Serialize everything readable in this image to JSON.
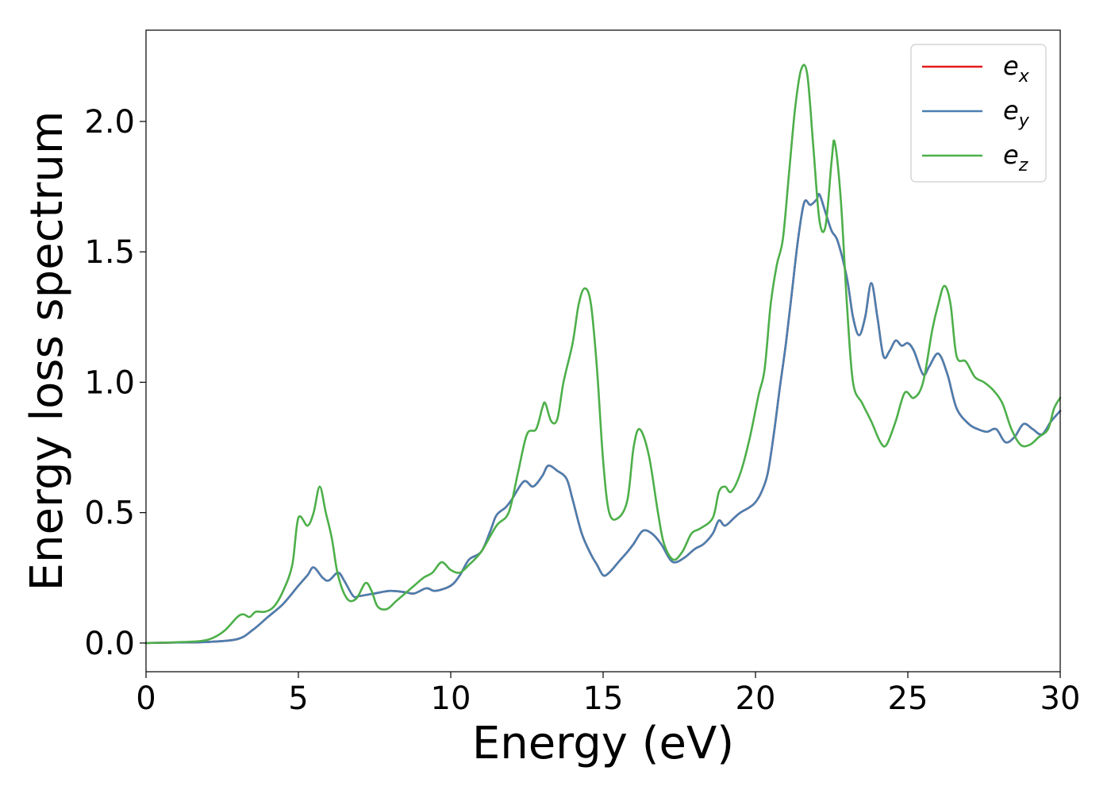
{
  "chart_data": {
    "type": "line",
    "title": "",
    "xlabel": "Energy (eV)",
    "ylabel": "Energy loss spectrum",
    "xlim": [
      0,
      30
    ],
    "ylim": [
      -0.11,
      2.35
    ],
    "xticks": [
      0,
      5,
      10,
      15,
      20,
      25,
      30
    ],
    "xtick_labels": [
      "0",
      "5",
      "10",
      "15",
      "20",
      "25",
      "30"
    ],
    "yticks": [
      0.0,
      0.5,
      1.0,
      1.5,
      2.0
    ],
    "ytick_labels": [
      "0.0",
      "0.5",
      "1.0",
      "1.5",
      "2.0"
    ],
    "grid": false,
    "legend_position": "top-right",
    "series": [
      {
        "name": "e_x",
        "legend_main": "e",
        "legend_sub": "x",
        "color": "#e41a1c",
        "points": [
          [
            0,
            0
          ],
          [
            1,
            0.002
          ],
          [
            2,
            0.004
          ],
          [
            3,
            0.015
          ],
          [
            3.5,
            0.05
          ],
          [
            4,
            0.1
          ],
          [
            4.5,
            0.15
          ],
          [
            5,
            0.22
          ],
          [
            5.3,
            0.26
          ],
          [
            5.5,
            0.29
          ],
          [
            5.8,
            0.25
          ],
          [
            6,
            0.24
          ],
          [
            6.3,
            0.27
          ],
          [
            6.5,
            0.24
          ],
          [
            6.8,
            0.18
          ],
          [
            7,
            0.18
          ],
          [
            7.5,
            0.19
          ],
          [
            8,
            0.2
          ],
          [
            8.5,
            0.195
          ],
          [
            8.8,
            0.19
          ],
          [
            9.2,
            0.21
          ],
          [
            9.5,
            0.2
          ],
          [
            10,
            0.22
          ],
          [
            10.3,
            0.26
          ],
          [
            10.6,
            0.32
          ],
          [
            11,
            0.35
          ],
          [
            11.3,
            0.43
          ],
          [
            11.5,
            0.49
          ],
          [
            11.8,
            0.52
          ],
          [
            12,
            0.55
          ],
          [
            12.4,
            0.62
          ],
          [
            12.7,
            0.6
          ],
          [
            13,
            0.64
          ],
          [
            13.2,
            0.68
          ],
          [
            13.5,
            0.66
          ],
          [
            13.8,
            0.63
          ],
          [
            14,
            0.55
          ],
          [
            14.3,
            0.42
          ],
          [
            14.6,
            0.34
          ],
          [
            14.8,
            0.3
          ],
          [
            15,
            0.26
          ],
          [
            15.2,
            0.27
          ],
          [
            15.5,
            0.31
          ],
          [
            15.8,
            0.35
          ],
          [
            16,
            0.38
          ],
          [
            16.3,
            0.43
          ],
          [
            16.6,
            0.42
          ],
          [
            16.9,
            0.38
          ],
          [
            17.2,
            0.32
          ],
          [
            17.4,
            0.31
          ],
          [
            17.7,
            0.33
          ],
          [
            18,
            0.36
          ],
          [
            18.3,
            0.38
          ],
          [
            18.6,
            0.42
          ],
          [
            18.8,
            0.47
          ],
          [
            19,
            0.45
          ],
          [
            19.3,
            0.48
          ],
          [
            19.5,
            0.5
          ],
          [
            19.8,
            0.52
          ],
          [
            20,
            0.54
          ],
          [
            20.2,
            0.58
          ],
          [
            20.4,
            0.65
          ],
          [
            20.6,
            0.8
          ],
          [
            20.8,
            0.98
          ],
          [
            21,
            1.15
          ],
          [
            21.2,
            1.35
          ],
          [
            21.4,
            1.55
          ],
          [
            21.6,
            1.69
          ],
          [
            21.8,
            1.68
          ],
          [
            22,
            1.7
          ],
          [
            22.1,
            1.72
          ],
          [
            22.3,
            1.65
          ],
          [
            22.5,
            1.58
          ],
          [
            22.7,
            1.54
          ],
          [
            23,
            1.4
          ],
          [
            23.2,
            1.25
          ],
          [
            23.4,
            1.18
          ],
          [
            23.6,
            1.25
          ],
          [
            23.8,
            1.38
          ],
          [
            24,
            1.25
          ],
          [
            24.2,
            1.1
          ],
          [
            24.4,
            1.12
          ],
          [
            24.6,
            1.16
          ],
          [
            24.8,
            1.14
          ],
          [
            25,
            1.15
          ],
          [
            25.2,
            1.12
          ],
          [
            25.5,
            1.03
          ],
          [
            25.7,
            1.06
          ],
          [
            26,
            1.11
          ],
          [
            26.3,
            1.03
          ],
          [
            26.6,
            0.9
          ],
          [
            27,
            0.84
          ],
          [
            27.3,
            0.82
          ],
          [
            27.6,
            0.81
          ],
          [
            27.9,
            0.82
          ],
          [
            28.2,
            0.77
          ],
          [
            28.5,
            0.79
          ],
          [
            28.8,
            0.84
          ],
          [
            29.1,
            0.82
          ],
          [
            29.4,
            0.8
          ],
          [
            29.7,
            0.85
          ],
          [
            30,
            0.89
          ]
        ]
      },
      {
        "name": "e_y",
        "legend_main": "e",
        "legend_sub": "y",
        "color": "#4a7fb0",
        "points": [
          [
            0,
            0
          ],
          [
            1,
            0.002
          ],
          [
            2,
            0.004
          ],
          [
            3,
            0.015
          ],
          [
            3.5,
            0.05
          ],
          [
            4,
            0.1
          ],
          [
            4.5,
            0.15
          ],
          [
            5,
            0.22
          ],
          [
            5.3,
            0.26
          ],
          [
            5.5,
            0.29
          ],
          [
            5.8,
            0.25
          ],
          [
            6,
            0.24
          ],
          [
            6.3,
            0.27
          ],
          [
            6.5,
            0.24
          ],
          [
            6.8,
            0.18
          ],
          [
            7,
            0.18
          ],
          [
            7.5,
            0.19
          ],
          [
            8,
            0.2
          ],
          [
            8.5,
            0.195
          ],
          [
            8.8,
            0.19
          ],
          [
            9.2,
            0.21
          ],
          [
            9.5,
            0.2
          ],
          [
            10,
            0.22
          ],
          [
            10.3,
            0.26
          ],
          [
            10.6,
            0.32
          ],
          [
            11,
            0.35
          ],
          [
            11.3,
            0.43
          ],
          [
            11.5,
            0.49
          ],
          [
            11.8,
            0.52
          ],
          [
            12,
            0.55
          ],
          [
            12.4,
            0.62
          ],
          [
            12.7,
            0.6
          ],
          [
            13,
            0.64
          ],
          [
            13.2,
            0.68
          ],
          [
            13.5,
            0.66
          ],
          [
            13.8,
            0.63
          ],
          [
            14,
            0.55
          ],
          [
            14.3,
            0.42
          ],
          [
            14.6,
            0.34
          ],
          [
            14.8,
            0.3
          ],
          [
            15,
            0.26
          ],
          [
            15.2,
            0.27
          ],
          [
            15.5,
            0.31
          ],
          [
            15.8,
            0.35
          ],
          [
            16,
            0.38
          ],
          [
            16.3,
            0.43
          ],
          [
            16.6,
            0.42
          ],
          [
            16.9,
            0.38
          ],
          [
            17.2,
            0.32
          ],
          [
            17.4,
            0.31
          ],
          [
            17.7,
            0.33
          ],
          [
            18,
            0.36
          ],
          [
            18.3,
            0.38
          ],
          [
            18.6,
            0.42
          ],
          [
            18.8,
            0.47
          ],
          [
            19,
            0.45
          ],
          [
            19.3,
            0.48
          ],
          [
            19.5,
            0.5
          ],
          [
            19.8,
            0.52
          ],
          [
            20,
            0.54
          ],
          [
            20.2,
            0.58
          ],
          [
            20.4,
            0.65
          ],
          [
            20.6,
            0.8
          ],
          [
            20.8,
            0.98
          ],
          [
            21,
            1.15
          ],
          [
            21.2,
            1.35
          ],
          [
            21.4,
            1.55
          ],
          [
            21.6,
            1.69
          ],
          [
            21.8,
            1.68
          ],
          [
            22,
            1.7
          ],
          [
            22.1,
            1.72
          ],
          [
            22.3,
            1.65
          ],
          [
            22.5,
            1.58
          ],
          [
            22.7,
            1.54
          ],
          [
            23,
            1.4
          ],
          [
            23.2,
            1.25
          ],
          [
            23.4,
            1.18
          ],
          [
            23.6,
            1.25
          ],
          [
            23.8,
            1.38
          ],
          [
            24,
            1.25
          ],
          [
            24.2,
            1.1
          ],
          [
            24.4,
            1.12
          ],
          [
            24.6,
            1.16
          ],
          [
            24.8,
            1.14
          ],
          [
            25,
            1.15
          ],
          [
            25.2,
            1.12
          ],
          [
            25.5,
            1.03
          ],
          [
            25.7,
            1.06
          ],
          [
            26,
            1.11
          ],
          [
            26.3,
            1.03
          ],
          [
            26.6,
            0.9
          ],
          [
            27,
            0.84
          ],
          [
            27.3,
            0.82
          ],
          [
            27.6,
            0.81
          ],
          [
            27.9,
            0.82
          ],
          [
            28.2,
            0.77
          ],
          [
            28.5,
            0.79
          ],
          [
            28.8,
            0.84
          ],
          [
            29.1,
            0.82
          ],
          [
            29.4,
            0.8
          ],
          [
            29.7,
            0.85
          ],
          [
            30,
            0.89
          ]
        ]
      },
      {
        "name": "e_z",
        "legend_main": "e",
        "legend_sub": "z",
        "color": "#4daf4a",
        "points": [
          [
            0,
            0
          ],
          [
            1,
            0.003
          ],
          [
            1.8,
            0.008
          ],
          [
            2.2,
            0.02
          ],
          [
            2.6,
            0.05
          ],
          [
            3,
            0.1
          ],
          [
            3.2,
            0.11
          ],
          [
            3.4,
            0.1
          ],
          [
            3.6,
            0.12
          ],
          [
            3.9,
            0.12
          ],
          [
            4.2,
            0.14
          ],
          [
            4.5,
            0.2
          ],
          [
            4.8,
            0.3
          ],
          [
            5,
            0.48
          ],
          [
            5.3,
            0.45
          ],
          [
            5.5,
            0.5
          ],
          [
            5.7,
            0.6
          ],
          [
            5.9,
            0.5
          ],
          [
            6.1,
            0.4
          ],
          [
            6.3,
            0.26
          ],
          [
            6.6,
            0.17
          ],
          [
            6.9,
            0.17
          ],
          [
            7.2,
            0.23
          ],
          [
            7.4,
            0.2
          ],
          [
            7.6,
            0.14
          ],
          [
            7.9,
            0.13
          ],
          [
            8.2,
            0.16
          ],
          [
            8.5,
            0.19
          ],
          [
            8.8,
            0.22
          ],
          [
            9.1,
            0.25
          ],
          [
            9.4,
            0.27
          ],
          [
            9.7,
            0.31
          ],
          [
            10,
            0.28
          ],
          [
            10.3,
            0.27
          ],
          [
            10.6,
            0.3
          ],
          [
            11,
            0.35
          ],
          [
            11.5,
            0.45
          ],
          [
            11.9,
            0.5
          ],
          [
            12.2,
            0.65
          ],
          [
            12.5,
            0.8
          ],
          [
            12.8,
            0.82
          ],
          [
            13,
            0.9
          ],
          [
            13.1,
            0.92
          ],
          [
            13.3,
            0.85
          ],
          [
            13.5,
            0.86
          ],
          [
            13.7,
            1.0
          ],
          [
            14,
            1.15
          ],
          [
            14.2,
            1.3
          ],
          [
            14.4,
            1.36
          ],
          [
            14.6,
            1.3
          ],
          [
            14.8,
            1.05
          ],
          [
            15,
            0.7
          ],
          [
            15.2,
            0.5
          ],
          [
            15.5,
            0.48
          ],
          [
            15.8,
            0.55
          ],
          [
            16,
            0.75
          ],
          [
            16.2,
            0.82
          ],
          [
            16.5,
            0.72
          ],
          [
            16.8,
            0.5
          ],
          [
            17,
            0.38
          ],
          [
            17.3,
            0.32
          ],
          [
            17.6,
            0.35
          ],
          [
            17.9,
            0.42
          ],
          [
            18.2,
            0.44
          ],
          [
            18.6,
            0.48
          ],
          [
            18.8,
            0.58
          ],
          [
            19,
            0.6
          ],
          [
            19.2,
            0.58
          ],
          [
            19.5,
            0.65
          ],
          [
            19.8,
            0.78
          ],
          [
            20.1,
            0.95
          ],
          [
            20.3,
            1.05
          ],
          [
            20.5,
            1.3
          ],
          [
            20.7,
            1.45
          ],
          [
            20.9,
            1.55
          ],
          [
            21.1,
            1.8
          ],
          [
            21.3,
            2.05
          ],
          [
            21.5,
            2.2
          ],
          [
            21.7,
            2.18
          ],
          [
            21.9,
            1.9
          ],
          [
            22.1,
            1.62
          ],
          [
            22.3,
            1.6
          ],
          [
            22.5,
            1.85
          ],
          [
            22.6,
            1.92
          ],
          [
            22.8,
            1.7
          ],
          [
            23,
            1.3
          ],
          [
            23.2,
            1.0
          ],
          [
            23.5,
            0.92
          ],
          [
            23.8,
            0.85
          ],
          [
            24.1,
            0.77
          ],
          [
            24.3,
            0.76
          ],
          [
            24.6,
            0.85
          ],
          [
            24.9,
            0.96
          ],
          [
            25.2,
            0.94
          ],
          [
            25.5,
            1.0
          ],
          [
            25.8,
            1.2
          ],
          [
            26,
            1.3
          ],
          [
            26.2,
            1.37
          ],
          [
            26.4,
            1.3
          ],
          [
            26.6,
            1.1
          ],
          [
            26.9,
            1.08
          ],
          [
            27.2,
            1.02
          ],
          [
            27.5,
            1.0
          ],
          [
            27.8,
            0.97
          ],
          [
            28.1,
            0.92
          ],
          [
            28.4,
            0.82
          ],
          [
            28.7,
            0.76
          ],
          [
            29,
            0.76
          ],
          [
            29.3,
            0.79
          ],
          [
            29.6,
            0.82
          ],
          [
            29.8,
            0.9
          ],
          [
            30,
            0.94
          ]
        ]
      }
    ]
  }
}
